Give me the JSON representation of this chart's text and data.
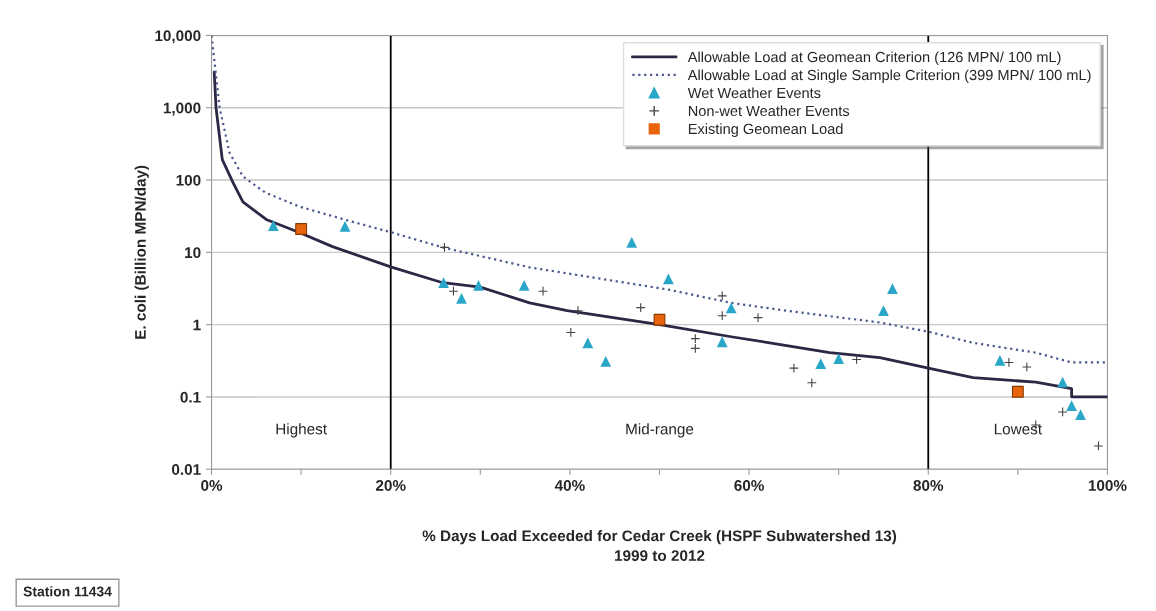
{
  "chart_data": {
    "type": "line",
    "xlabel": "% Days Load Exceeded for Cedar Creek (HSPF Subwatershed 13)\n1999 to 2012",
    "ylabel": "E. coli (Billion MPN/day)",
    "log": "y",
    "grid": "y",
    "legend": "top right",
    "xlim": [
      0,
      100
    ],
    "ylim": [
      0.01,
      10000
    ],
    "xticks": [
      {
        "value": 0,
        "label": "0%"
      },
      {
        "value": 10,
        "label": null
      },
      {
        "value": 20,
        "label": "20%"
      },
      {
        "value": 30,
        "label": null
      },
      {
        "value": 40,
        "label": "40%"
      },
      {
        "value": 50,
        "label": null
      },
      {
        "value": 60,
        "label": "60%"
      },
      {
        "value": 70,
        "label": null
      },
      {
        "value": 80,
        "label": "80%"
      },
      {
        "value": 90,
        "label": null
      },
      {
        "value": 100,
        "label": "100%"
      }
    ],
    "yticks": [
      0.01,
      0.1,
      1,
      10,
      {
        "value": 100,
        "label": "100"
      },
      {
        "value": 1000,
        "label": "1,000"
      },
      {
        "value": 10000,
        "label": "10,000"
      }
    ],
    "ref_lines": [
      {
        "axis": "x",
        "value": 20,
        "color": "#000000"
      },
      {
        "axis": "x",
        "value": 80,
        "color": "#000000"
      }
    ],
    "annotations": [
      "Highest",
      "Mid-range",
      "Lowest",
      "Station 11434"
    ],
    "series": [
      {
        "name": "Allowable Load at Geomean Criterion (126 MPN/ 100 mL)",
        "line_style": "solid",
        "color": "#2b2745",
        "x": [
          0.3,
          0.5,
          1.2,
          2.4,
          3.5,
          6.1,
          9.8,
          13.5,
          20,
          25.8,
          30,
          35.5,
          39.7,
          50,
          58,
          63.5,
          69,
          74.6,
          80,
          85,
          92,
          96,
          96,
          100
        ],
        "values": [
          3100,
          1000,
          192,
          92,
          50,
          28.5,
          18.8,
          12,
          6.3,
          3.8,
          3.3,
          2.0,
          1.56,
          1.0,
          0.68,
          0.53,
          0.41,
          0.35,
          0.25,
          0.185,
          0.16,
          0.13,
          0.1,
          0.1
        ]
      },
      {
        "name": "Allowable Load at Single Sample Criterion (399 MPN/ 100 mL)",
        "line_style": "dotted",
        "color": "#4a5a8c",
        "x": [
          0,
          0.9,
          2,
          3.5,
          6,
          9.8,
          15,
          20,
          25.8,
          35.5,
          51,
          58,
          63.5,
          74.6,
          80,
          85,
          92,
          96,
          100
        ],
        "values": [
          10000,
          1000,
          240,
          112,
          67,
          43,
          28,
          19,
          11.7,
          6.2,
          3.05,
          2.0,
          1.6,
          1.07,
          0.8,
          0.56,
          0.41,
          0.3,
          0.3
        ]
      },
      {
        "name": "Wet Weather Events",
        "type": "scatter",
        "marker": "triangle",
        "color": "#2aa6c8",
        "x": [
          6.9,
          14.9,
          25.9,
          27.9,
          29.8,
          34.9,
          42,
          44,
          46.9,
          51,
          57,
          58,
          68,
          70,
          75,
          76,
          88,
          95,
          96,
          97
        ],
        "values": [
          23.5,
          22.9,
          3.8,
          2.3,
          3.5,
          3.5,
          0.56,
          0.31,
          13.7,
          4.3,
          0.58,
          1.7,
          0.29,
          0.34,
          1.56,
          3.15,
          0.32,
          0.16,
          0.076,
          0.057
        ]
      },
      {
        "name": "Non-wet Weather Events",
        "type": "scatter",
        "marker": "cross",
        "color": "#444444",
        "x": [
          26,
          27,
          37,
          40.1,
          40.9,
          47.9,
          54,
          54,
          57,
          57,
          61,
          65,
          67,
          72,
          89,
          91,
          92,
          95,
          99
        ],
        "values": [
          11.7,
          2.9,
          2.9,
          0.78,
          1.56,
          1.72,
          0.64,
          0.47,
          2.5,
          1.33,
          1.25,
          0.25,
          0.157,
          0.33,
          0.3,
          0.26,
          0.041,
          0.062,
          0.021
        ]
      },
      {
        "name": "Existing Geomean Load",
        "type": "scatter",
        "marker": "square",
        "color": "#e8650e",
        "x": [
          10,
          50,
          90
        ],
        "values": [
          21,
          1.17,
          0.118
        ]
      }
    ]
  }
}
